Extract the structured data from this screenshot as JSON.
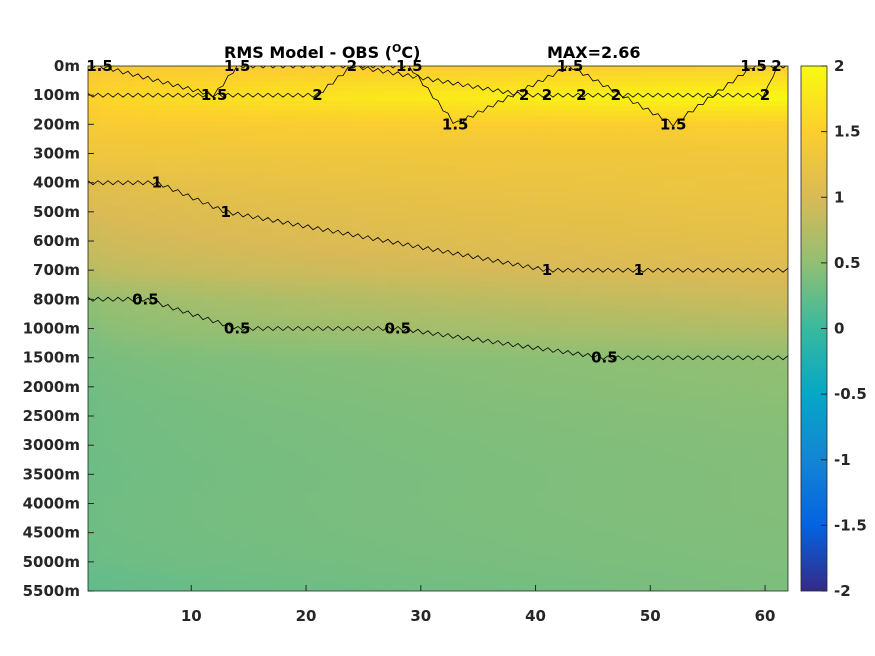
{
  "chart_data": {
    "type": "heatmap",
    "title": "RMS Model - OBS (",
    "title_unit": "O",
    "title_suffix": "C)",
    "max_label": "MAX=2.66",
    "x_ticks": [
      10,
      20,
      30,
      40,
      50,
      60
    ],
    "x_range": [
      1,
      62
    ],
    "y_ticks": [
      "0m",
      "100m",
      "200m",
      "300m",
      "400m",
      "500m",
      "600m",
      "700m",
      "800m",
      "1000m",
      "1500m",
      "2000m",
      "2500m",
      "3000m",
      "3500m",
      "4000m",
      "4500m",
      "5000m",
      "5500m"
    ],
    "colorbar": {
      "range": [
        -2,
        2
      ],
      "ticks": [
        "2",
        "1.5",
        "1",
        "0.5",
        "0",
        "-0.5",
        "-1",
        "-1.5",
        "-2"
      ],
      "colormap": "parula"
    },
    "depth_profile_start": [
      1.4,
      1.55,
      1.42,
      1.3,
      1.12,
      1.0,
      0.9,
      0.78,
      0.5,
      0.42,
      0.35,
      0.32,
      0.3,
      0.3,
      0.29,
      0.3,
      0.3,
      0.28,
      0.22
    ],
    "depth_profile_end": [
      1.55,
      1.95,
      1.48,
      1.33,
      1.28,
      1.22,
      1.15,
      1.05,
      0.9,
      0.72,
      0.5,
      0.48,
      0.45,
      0.43,
      0.42,
      0.42,
      0.41,
      0.4,
      0.38
    ],
    "contours": [
      {
        "level": "0.5",
        "labels": [
          {
            "x": 6,
            "y": "800m"
          },
          {
            "x": 14,
            "y": "1000m"
          },
          {
            "x": 28,
            "y": "1000m"
          },
          {
            "x": 46,
            "y": "1500m"
          }
        ]
      },
      {
        "level": "1",
        "labels": [
          {
            "x": 7,
            "y": "400m"
          },
          {
            "x": 13,
            "y": "500m"
          },
          {
            "x": 41,
            "y": "700m"
          },
          {
            "x": 49,
            "y": "700m"
          }
        ]
      },
      {
        "level": "1.5",
        "labels": [
          {
            "x": 2,
            "y": "0m"
          },
          {
            "x": 14,
            "y": "0m"
          },
          {
            "x": 29,
            "y": "0m"
          },
          {
            "x": 43,
            "y": "0m"
          },
          {
            "x": 59,
            "y": "0m"
          },
          {
            "x": 12,
            "y": "100m"
          },
          {
            "x": 33,
            "y": "200m"
          },
          {
            "x": 52,
            "y": "200m"
          }
        ]
      },
      {
        "level": "2",
        "labels": [
          {
            "x": 21,
            "y": "100m"
          },
          {
            "x": 24,
            "y": "0m"
          },
          {
            "x": 39,
            "y": "100m"
          },
          {
            "x": 41,
            "y": "100m"
          },
          {
            "x": 44,
            "y": "100m"
          },
          {
            "x": 47,
            "y": "100m"
          },
          {
            "x": 61,
            "y": "0m"
          },
          {
            "x": 60,
            "y": "100m"
          }
        ]
      }
    ],
    "colors": {
      "contour_line": "#000000",
      "axis_text": "#262626"
    }
  }
}
